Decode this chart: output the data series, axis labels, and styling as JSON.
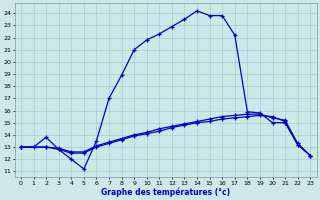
{
  "xlabel": "Graphe des températures (°c)",
  "background_color": "#cce8e8",
  "grid_color": "#aacccc",
  "line_color": "#0000cc",
  "xlim": [
    -0.5,
    23.5
  ],
  "ylim": [
    10.5,
    24.8
  ],
  "xticks": [
    0,
    1,
    2,
    3,
    4,
    5,
    6,
    7,
    8,
    9,
    10,
    11,
    12,
    13,
    14,
    15,
    16,
    17,
    18,
    19,
    20,
    21,
    22,
    23
  ],
  "yticks": [
    11,
    12,
    13,
    14,
    15,
    16,
    17,
    18,
    19,
    20,
    21,
    22,
    23,
    24
  ],
  "line1_x": [
    0,
    1,
    2,
    3,
    4,
    5,
    6,
    7,
    8,
    9,
    10,
    11,
    12,
    13,
    14,
    15,
    16,
    17,
    18,
    19,
    20,
    21,
    22,
    23
  ],
  "line1_y": [
    13.0,
    13.0,
    13.8,
    12.8,
    12.0,
    11.2,
    13.5,
    17.0,
    18.9,
    21.0,
    21.8,
    22.3,
    22.9,
    23.5,
    24.2,
    23.8,
    23.8,
    22.2,
    15.9,
    15.8,
    15.0,
    15.0,
    13.2,
    12.3
  ],
  "line2_x": [
    0,
    2,
    3,
    4,
    5,
    6,
    7,
    8,
    9,
    10,
    11,
    12,
    13,
    14,
    15,
    16,
    17,
    18,
    19,
    20,
    21,
    22,
    23
  ],
  "line2_y": [
    13.0,
    13.0,
    12.8,
    12.5,
    12.5,
    13.0,
    13.3,
    13.6,
    13.9,
    14.1,
    14.3,
    14.6,
    14.8,
    15.0,
    15.1,
    15.3,
    15.4,
    15.5,
    15.6,
    15.5,
    15.1,
    13.2,
    12.3
  ],
  "line3_x": [
    0,
    2,
    3,
    4,
    5,
    6,
    7,
    8,
    9,
    10,
    11,
    12,
    13,
    14,
    15,
    16,
    17,
    18,
    19,
    20,
    21,
    22,
    23
  ],
  "line3_y": [
    13.0,
    13.0,
    12.9,
    12.6,
    12.6,
    13.1,
    13.4,
    13.7,
    14.0,
    14.2,
    14.5,
    14.7,
    14.9,
    15.1,
    15.3,
    15.5,
    15.6,
    15.7,
    15.7,
    15.4,
    15.2,
    13.3,
    12.3
  ]
}
